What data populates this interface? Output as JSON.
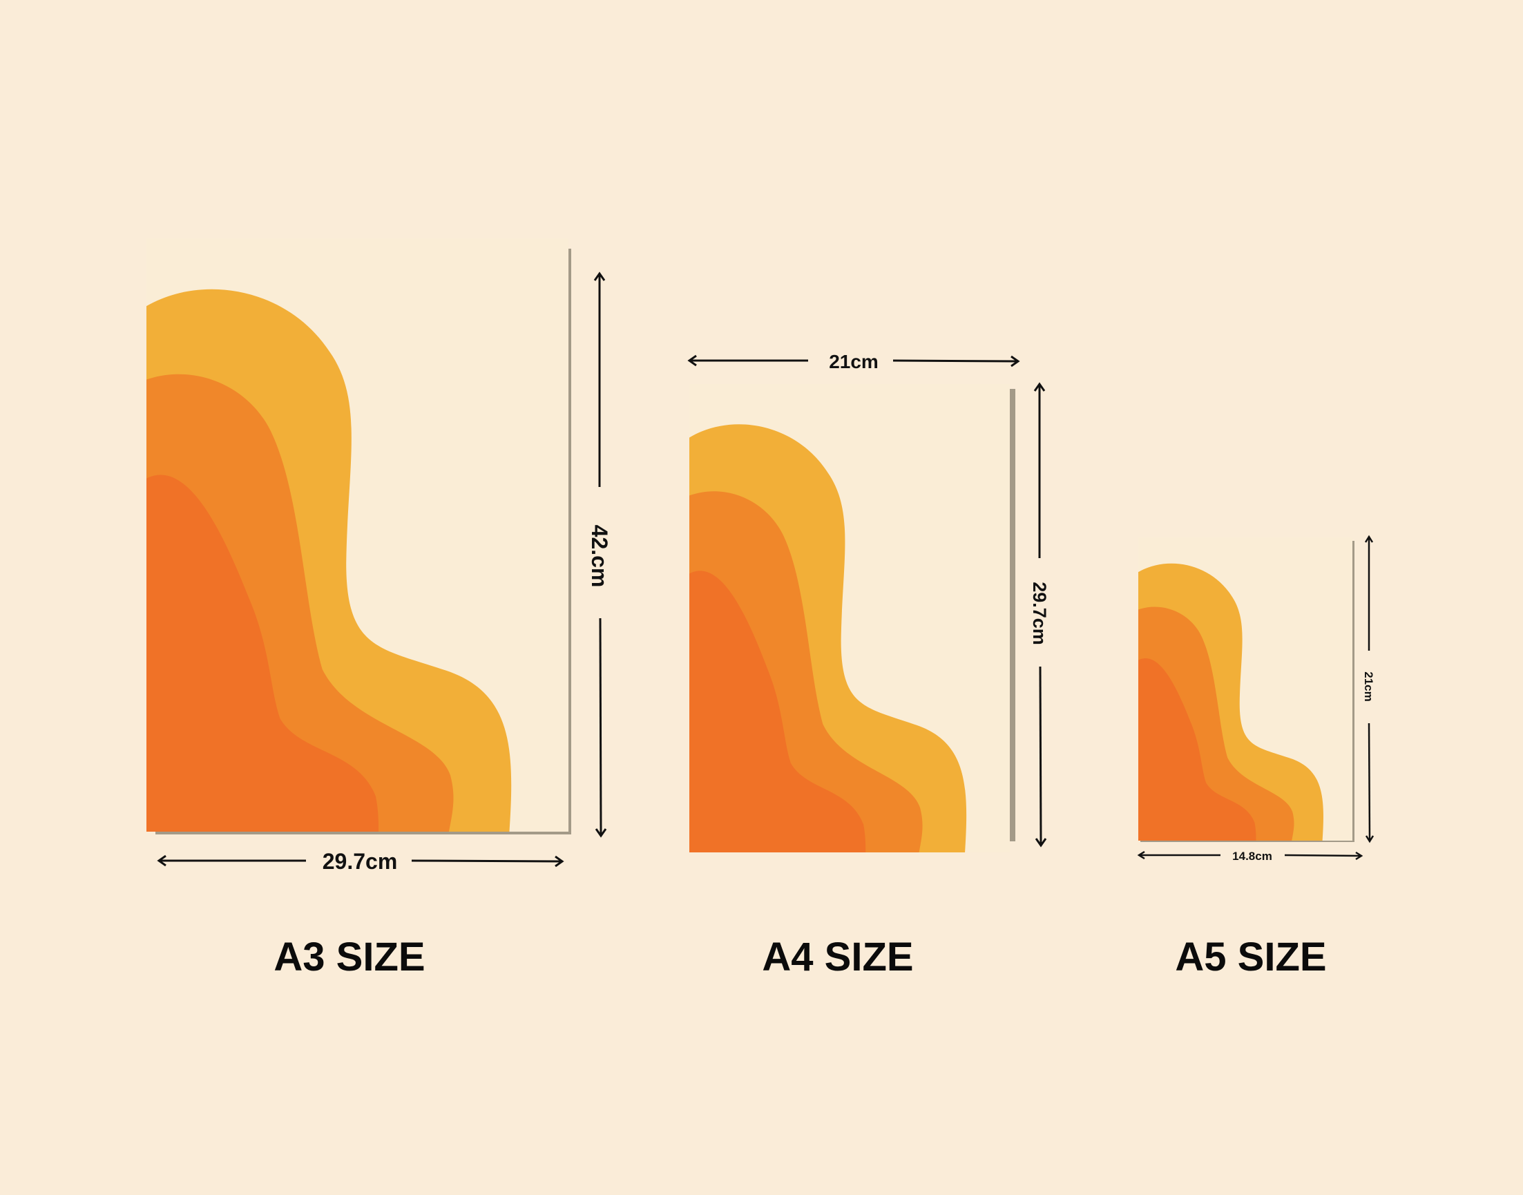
{
  "colors": {
    "background": "#FAECD8",
    "paper": "#FAEDD6",
    "paper_shadow": "#A39A88",
    "wave_yellow": "#F2AF38",
    "wave_orange": "#F0872A",
    "wave_red": "#F07227",
    "arrow": "#111111"
  },
  "posters": [
    {
      "id": "a3",
      "label": "A3 SIZE",
      "width_label": "29.7cm",
      "height_label": "42.cm"
    },
    {
      "id": "a4",
      "label": "A4 SIZE",
      "width_label": "21cm",
      "height_label": "29.7cm"
    },
    {
      "id": "a5",
      "label": "A5 SIZE",
      "width_label": "14.8cm",
      "height_label": "21cm"
    }
  ]
}
